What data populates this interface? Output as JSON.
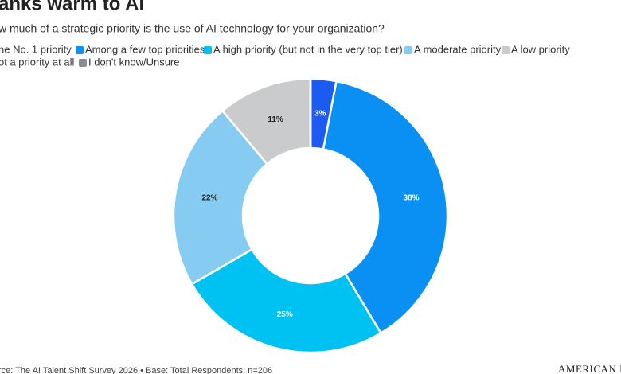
{
  "chart_data": {
    "type": "donut",
    "title": "anks warm to AI",
    "subtitle": "w much of a strategic priority is the use of AI technology for your organization?",
    "categories": [
      "he No. 1 priority",
      "Among a few top priorities",
      "A high priority (but not in the very top tier)",
      "A moderate priority",
      "A low priority",
      "ot a priority at all",
      "I don't know/Unsure"
    ],
    "values": [
      3,
      38,
      25,
      22,
      11,
      0,
      0
    ],
    "value_labels": [
      "3%",
      "38%",
      "25%",
      "22%",
      "11%",
      null,
      null
    ],
    "colors": [
      "#1c5bf2",
      "#0a8ff2",
      "#00c2f2",
      "#86cbf2",
      "#c9cbcd",
      "#4a4f55",
      "#8a8d90"
    ],
    "source": "rce: The AI Talent Shift Survey 2026 • Base: Total Respondents: n=206",
    "brand": "AMERICAN BAN"
  }
}
